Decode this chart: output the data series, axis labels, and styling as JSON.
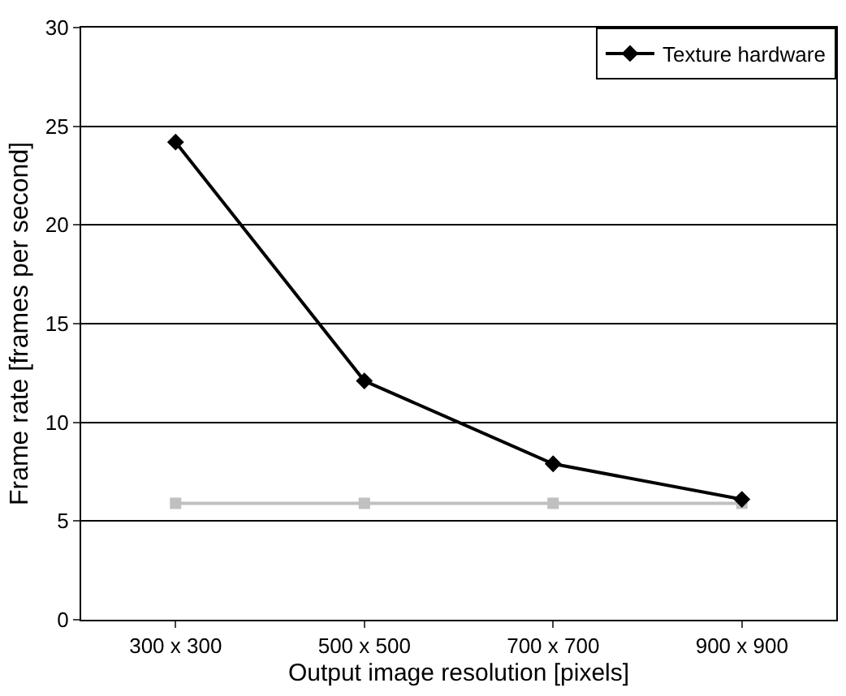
{
  "chart_data": {
    "type": "line",
    "xlabel": "Output image resolution [pixels]",
    "ylabel": "Frame rate [frames per second]",
    "categories": [
      "300 x 300",
      "500 x 500",
      "700 x 700",
      "900 x 900"
    ],
    "series": [
      {
        "name": "Texture hardware",
        "color": "#000000",
        "marker": "diamond",
        "values": [
          24.2,
          12.1,
          7.9,
          6.1
        ]
      },
      {
        "color": "#c0c0c0",
        "marker": "square",
        "values": [
          5.9,
          5.9,
          5.9,
          5.9
        ]
      }
    ],
    "ylim": [
      0,
      30
    ],
    "yticks": [
      0,
      5,
      10,
      15,
      20,
      25,
      30
    ],
    "grid": "y",
    "legend": "top right",
    "line_style": "solid"
  }
}
